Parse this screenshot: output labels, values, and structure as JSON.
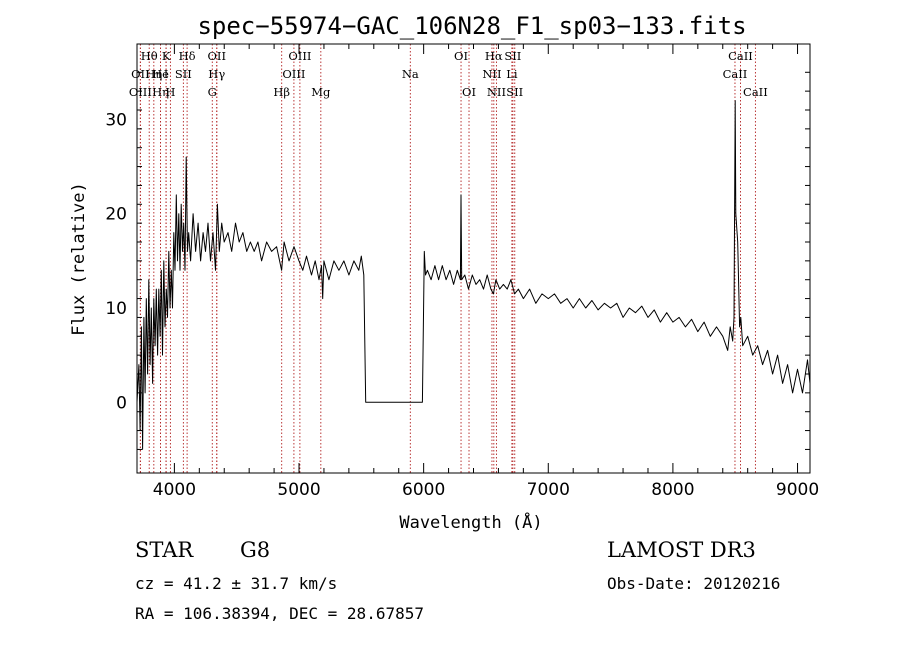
{
  "chart_data": {
    "type": "line",
    "title": "spec−55974−GAC_106N28_F1_sp03−133.fits",
    "xlabel": "Wavelength (Å)",
    "ylabel": "Flux (relative)",
    "xlim": [
      3700,
      9100
    ],
    "ylim": [
      -7.5,
      38
    ],
    "xticks": [
      {
        "v": 4000,
        "label": "4000"
      },
      {
        "v": 5000,
        "label": "5000"
      },
      {
        "v": 6000,
        "label": "6000"
      },
      {
        "v": 7000,
        "label": "7000"
      },
      {
        "v": 8000,
        "label": "8000"
      },
      {
        "v": 9000,
        "label": "9000"
      }
    ],
    "yticks": [
      {
        "v": 0,
        "label": "0"
      },
      {
        "v": 10,
        "label": "10"
      },
      {
        "v": 20,
        "label": "20"
      },
      {
        "v": 30,
        "label": "30"
      }
    ],
    "line_color": "#b22222",
    "series_color": "#000000",
    "lines": [
      {
        "label": "Hθ",
        "wave": 3798,
        "row": 0
      },
      {
        "label": "OII",
        "wave": 3727,
        "row": 1
      },
      {
        "label": "OIII",
        "wave": 3727,
        "row": 2
      },
      {
        "label": "K",
        "wave": 3934,
        "row": 0
      },
      {
        "label": "Hη",
        "wave": 3835,
        "row": 1
      },
      {
        "label": "He",
        "wave": 3889,
        "row": 1
      },
      {
        "label": "I",
        "wave": 3933,
        "row": 1
      },
      {
        "label": "Hη",
        "wave": 3889,
        "row": 2
      },
      {
        "label": "H",
        "wave": 3968,
        "row": 2
      },
      {
        "label": "Hδ",
        "wave": 4102,
        "row": 0
      },
      {
        "label": "SII",
        "wave": 4072,
        "row": 1
      },
      {
        "label": "G",
        "wave": 4304,
        "row": 2
      },
      {
        "label": "OII",
        "wave": 4340,
        "row": 0
      },
      {
        "label": "Hγ",
        "wave": 4340,
        "row": 1
      },
      {
        "label": "Hβ",
        "wave": 4861,
        "row": 2
      },
      {
        "label": "OIII",
        "wave": 5007,
        "row": 0
      },
      {
        "label": "OIII",
        "wave": 4959,
        "row": 1
      },
      {
        "label": "Mg",
        "wave": 5175,
        "row": 2
      },
      {
        "label": "Na",
        "wave": 5893,
        "row": 1
      },
      {
        "label": "OI",
        "wave": 6300,
        "row": 0
      },
      {
        "label": "OI",
        "wave": 6364,
        "row": 2
      },
      {
        "label": "Hα",
        "wave": 6563,
        "row": 0
      },
      {
        "label": "SII",
        "wave": 6716,
        "row": 0
      },
      {
        "label": "NII",
        "wave": 6548,
        "row": 1
      },
      {
        "label": "Li",
        "wave": 6708,
        "row": 1
      },
      {
        "label": "NII",
        "wave": 6584,
        "row": 2
      },
      {
        "label": "SII",
        "wave": 6731,
        "row": 2
      },
      {
        "label": "CaII",
        "wave": 8542,
        "row": 0
      },
      {
        "label": "CaII",
        "wave": 8498,
        "row": 1
      },
      {
        "label": "CaII",
        "wave": 8662,
        "row": 2
      }
    ],
    "series": [
      {
        "name": "spectrum",
        "points": [
          [
            3700,
            0
          ],
          [
            3715,
            4
          ],
          [
            3725,
            -3
          ],
          [
            3735,
            8
          ],
          [
            3745,
            -5
          ],
          [
            3755,
            9
          ],
          [
            3765,
            1
          ],
          [
            3775,
            11
          ],
          [
            3785,
            3
          ],
          [
            3795,
            13
          ],
          [
            3805,
            4
          ],
          [
            3815,
            10
          ],
          [
            3825,
            2
          ],
          [
            3835,
            11
          ],
          [
            3845,
            6
          ],
          [
            3855,
            12
          ],
          [
            3865,
            5
          ],
          [
            3875,
            12
          ],
          [
            3885,
            7
          ],
          [
            3895,
            14
          ],
          [
            3905,
            5
          ],
          [
            3915,
            15
          ],
          [
            3925,
            8
          ],
          [
            3935,
            12
          ],
          [
            3945,
            9
          ],
          [
            3955,
            16
          ],
          [
            3965,
            10
          ],
          [
            3975,
            14
          ],
          [
            3985,
            10
          ],
          [
            3995,
            18
          ],
          [
            4005,
            14
          ],
          [
            4015,
            22
          ],
          [
            4025,
            15
          ],
          [
            4035,
            20
          ],
          [
            4045,
            14
          ],
          [
            4055,
            21
          ],
          [
            4065,
            16
          ],
          [
            4075,
            19
          ],
          [
            4085,
            14
          ],
          [
            4095,
            26
          ],
          [
            4105,
            16
          ],
          [
            4115,
            18
          ],
          [
            4130,
            15
          ],
          [
            4150,
            20
          ],
          [
            4170,
            16
          ],
          [
            4190,
            19
          ],
          [
            4210,
            15
          ],
          [
            4230,
            18
          ],
          [
            4250,
            16
          ],
          [
            4270,
            19
          ],
          [
            4290,
            15
          ],
          [
            4310,
            18
          ],
          [
            4330,
            14
          ],
          [
            4345,
            21
          ],
          [
            4360,
            16
          ],
          [
            4380,
            19
          ],
          [
            4400,
            17
          ],
          [
            4430,
            18
          ],
          [
            4460,
            16
          ],
          [
            4490,
            19
          ],
          [
            4520,
            17
          ],
          [
            4550,
            18
          ],
          [
            4580,
            16
          ],
          [
            4610,
            17
          ],
          [
            4640,
            16
          ],
          [
            4670,
            17
          ],
          [
            4700,
            15
          ],
          [
            4740,
            17
          ],
          [
            4780,
            16
          ],
          [
            4820,
            16.5
          ],
          [
            4860,
            14
          ],
          [
            4880,
            17
          ],
          [
            4920,
            15
          ],
          [
            4960,
            16.5
          ],
          [
            5000,
            15
          ],
          [
            5030,
            14
          ],
          [
            5060,
            15.5
          ],
          [
            5100,
            13.5
          ],
          [
            5130,
            15
          ],
          [
            5160,
            13
          ],
          [
            5180,
            14.5
          ],
          [
            5190,
            11
          ],
          [
            5200,
            15
          ],
          [
            5240,
            13
          ],
          [
            5280,
            15
          ],
          [
            5320,
            14
          ],
          [
            5360,
            15
          ],
          [
            5400,
            13.5
          ],
          [
            5440,
            15
          ],
          [
            5480,
            14
          ],
          [
            5500,
            15.5
          ],
          [
            5520,
            13.5
          ],
          [
            5535,
            0
          ],
          [
            5990,
            0
          ],
          [
            6005,
            16
          ],
          [
            6015,
            13.5
          ],
          [
            6030,
            14
          ],
          [
            6060,
            13
          ],
          [
            6090,
            14.5
          ],
          [
            6120,
            13
          ],
          [
            6150,
            14.5
          ],
          [
            6180,
            13
          ],
          [
            6210,
            14
          ],
          [
            6240,
            12.5
          ],
          [
            6270,
            14
          ],
          [
            6295,
            13
          ],
          [
            6300,
            22
          ],
          [
            6305,
            13
          ],
          [
            6330,
            13.5
          ],
          [
            6360,
            12
          ],
          [
            6390,
            13.5
          ],
          [
            6420,
            12.5
          ],
          [
            6450,
            13
          ],
          [
            6480,
            12
          ],
          [
            6510,
            13.5
          ],
          [
            6540,
            12
          ],
          [
            6560,
            11.5
          ],
          [
            6580,
            13
          ],
          [
            6610,
            12
          ],
          [
            6640,
            12.5
          ],
          [
            6670,
            12
          ],
          [
            6700,
            13
          ],
          [
            6730,
            11.5
          ],
          [
            6760,
            12
          ],
          [
            6800,
            11
          ],
          [
            6850,
            12
          ],
          [
            6900,
            10.5
          ],
          [
            6950,
            11.5
          ],
          [
            7000,
            11
          ],
          [
            7050,
            11.5
          ],
          [
            7100,
            10.5
          ],
          [
            7150,
            11
          ],
          [
            7200,
            10
          ],
          [
            7250,
            11
          ],
          [
            7300,
            10
          ],
          [
            7350,
            10.8
          ],
          [
            7400,
            9.8
          ],
          [
            7450,
            10.5
          ],
          [
            7500,
            10
          ],
          [
            7550,
            10.5
          ],
          [
            7600,
            9
          ],
          [
            7650,
            10
          ],
          [
            7700,
            9.5
          ],
          [
            7750,
            10.2
          ],
          [
            7800,
            9
          ],
          [
            7850,
            9.8
          ],
          [
            7900,
            8.5
          ],
          [
            7950,
            9.5
          ],
          [
            8000,
            8.5
          ],
          [
            8050,
            9
          ],
          [
            8100,
            8
          ],
          [
            8150,
            8.8
          ],
          [
            8200,
            7.5
          ],
          [
            8250,
            8.5
          ],
          [
            8300,
            7
          ],
          [
            8350,
            8
          ],
          [
            8400,
            7
          ],
          [
            8440,
            5.5
          ],
          [
            8460,
            8
          ],
          [
            8480,
            6.5
          ],
          [
            8490,
            9
          ],
          [
            8500,
            32
          ],
          [
            8505,
            20
          ],
          [
            8520,
            17
          ],
          [
            8535,
            8
          ],
          [
            8545,
            9
          ],
          [
            8560,
            6
          ],
          [
            8600,
            7
          ],
          [
            8640,
            5
          ],
          [
            8680,
            6
          ],
          [
            8720,
            4
          ],
          [
            8760,
            5.5
          ],
          [
            8800,
            3
          ],
          [
            8840,
            5
          ],
          [
            8880,
            2
          ],
          [
            8920,
            4
          ],
          [
            8960,
            1
          ],
          [
            9000,
            3.5
          ],
          [
            9040,
            1
          ],
          [
            9080,
            4.5
          ],
          [
            9100,
            2
          ]
        ]
      }
    ]
  },
  "info": {
    "object_class": "STAR",
    "subclass": "G8",
    "survey": "LAMOST DR3",
    "cz": "cz = 41.2 ± 31.7 km/s",
    "obs_date": "Obs-Date: 20120216",
    "coords": "RA = 106.38394, DEC =  28.67857"
  }
}
